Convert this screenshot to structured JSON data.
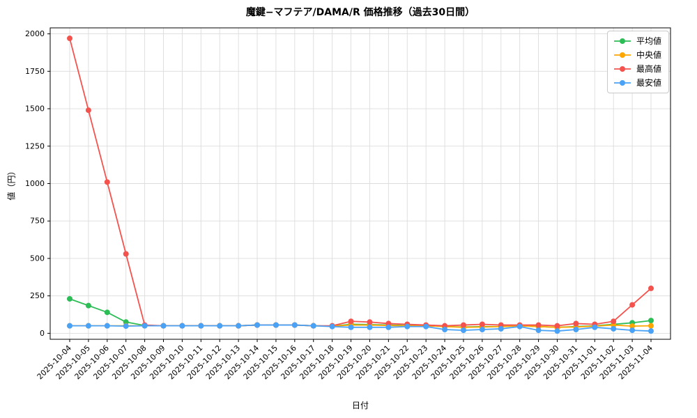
{
  "chart_data": {
    "type": "line",
    "title": "魔鍵−マフテア/DAMA/R 価格推移（過去30日間）",
    "xlabel": "日付",
    "ylabel": "値（円）",
    "ylim": [
      0,
      2000
    ],
    "yticks": [
      0,
      250,
      500,
      750,
      1000,
      1250,
      1500,
      1750,
      2000
    ],
    "grid": true,
    "legend_position": "top-right",
    "background_color": "#ffffff",
    "grid_color": "#dcdcdc",
    "categories": [
      "2025-10-04",
      "2025-10-05",
      "2025-10-06",
      "2025-10-07",
      "2025-10-08",
      "2025-10-09",
      "2025-10-10",
      "2025-10-11",
      "2025-10-12",
      "2025-10-13",
      "2025-10-14",
      "2025-10-15",
      "2025-10-16",
      "2025-10-17",
      "2025-10-18",
      "2025-10-19",
      "2025-10-20",
      "2025-10-21",
      "2025-10-22",
      "2025-10-23",
      "2025-10-24",
      "2025-10-25",
      "2025-10-26",
      "2025-10-27",
      "2025-10-28",
      "2025-10-29",
      "2025-10-30",
      "2025-10-31",
      "2025-11-01",
      "2025-11-02",
      "2025-11-03",
      "2025-11-04"
    ],
    "series": [
      {
        "id": "average",
        "name": "平均値",
        "color": "#2dbd56",
        "values": [
          230,
          185,
          140,
          75,
          52,
          50,
          50,
          50,
          50,
          50,
          55,
          55,
          55,
          50,
          48,
          60,
          58,
          55,
          52,
          50,
          45,
          42,
          45,
          45,
          50,
          45,
          40,
          45,
          50,
          60,
          70,
          85
        ]
      },
      {
        "id": "median",
        "name": "中央値",
        "color": "#ffa500",
        "values": [
          50,
          50,
          50,
          50,
          50,
          50,
          50,
          50,
          50,
          50,
          55,
          55,
          55,
          50,
          48,
          55,
          55,
          52,
          50,
          50,
          45,
          40,
          42,
          45,
          50,
          45,
          40,
          42,
          48,
          55,
          48,
          50
        ]
      },
      {
        "id": "max",
        "name": "最高値",
        "color": "#f4524d",
        "values": [
          1970,
          1490,
          1010,
          530,
          55,
          50,
          50,
          50,
          50,
          50,
          55,
          55,
          55,
          50,
          50,
          80,
          75,
          65,
          60,
          55,
          50,
          55,
          60,
          55,
          55,
          55,
          50,
          65,
          60,
          80,
          190,
          300
        ]
      },
      {
        "id": "min",
        "name": "最安値",
        "color": "#4aa2f7",
        "values": [
          50,
          50,
          50,
          48,
          50,
          50,
          50,
          50,
          50,
          50,
          55,
          55,
          55,
          50,
          45,
          40,
          40,
          40,
          45,
          45,
          25,
          20,
          25,
          30,
          45,
          20,
          15,
          25,
          40,
          30,
          20,
          15
        ]
      }
    ]
  }
}
